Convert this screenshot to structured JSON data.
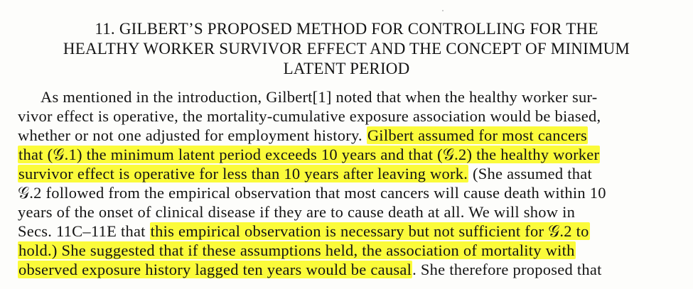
{
  "section": {
    "title_lines": [
      "11. GILBERT’S PROPOSED METHOD FOR CONTROLLING FOR THE",
      "HEALTHY WORKER SURVIVOR EFFECT AND THE CONCEPT OF MINIMUM",
      "LATENT PERIOD"
    ]
  },
  "body": {
    "l1": "As mentioned in the introduction, Gilbert[1] noted that when the healthy worker sur-",
    "l2": "vivor effect is operative, the mortality-cumulative exposure association would be biased,",
    "l3a": "whether or not one adjusted for employment history. ",
    "l3b": "Gilbert assumed for most cancers",
    "l4": "that (𝒢.1) the minimum latent period exceeds 10 years and that (𝒢.2) the healthy worker",
    "l5a": "survivor effect is operative for less than 10 years after leaving work.",
    "l5b": " (She assumed that",
    "l6": "𝒢.2 followed from the empirical observation that most cancers will cause death within 10",
    "l7": "years of the onset of clinical disease if they are to cause death at all. We will show in",
    "l8a": "Secs. 11C–11E that ",
    "l8b": "this empirical observation is necessary but not sufficient for 𝒢.2 to",
    "l9": "hold.) She suggested that if these assumptions held, the association of mortality with",
    "l10a": "observed exposure history lagged ten years would be causal",
    "l10b": ". She therefore proposed that"
  },
  "highlight_color": "#fbfb3a"
}
